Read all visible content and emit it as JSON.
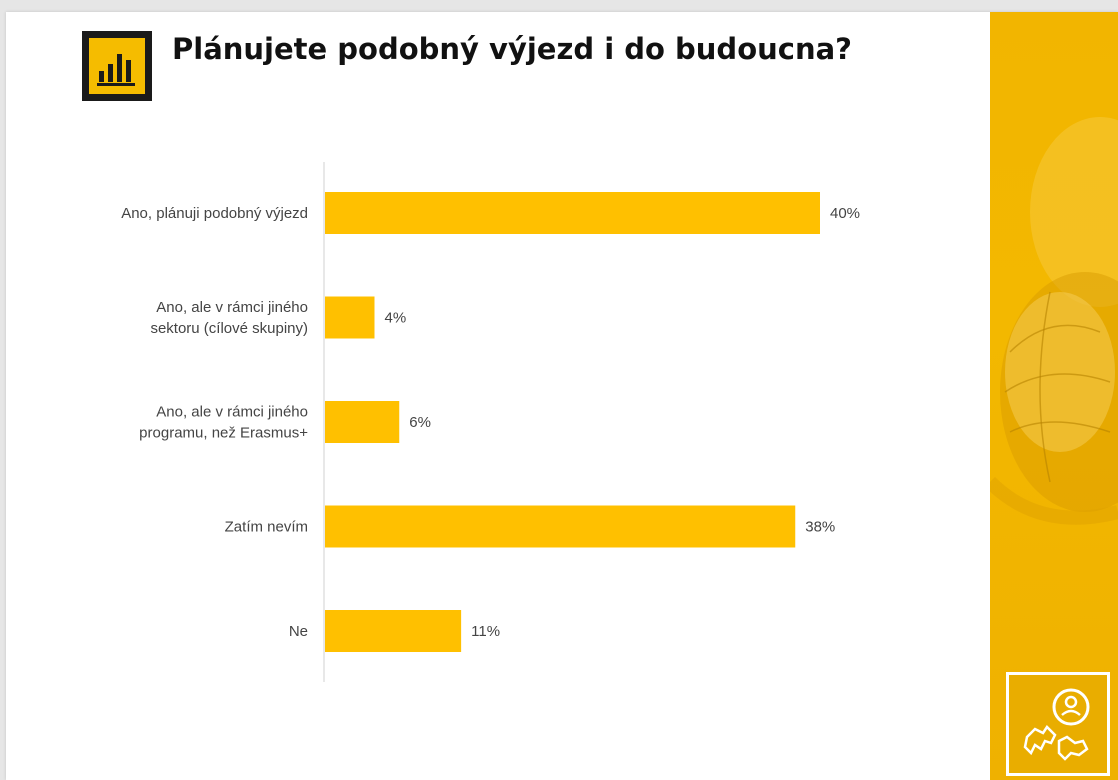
{
  "slide": {
    "title": "Plánujete podobný výjezd i do budoucna?"
  },
  "icons": {
    "title_icon": "bar-chart-icon",
    "brand_icon": "traveler-globe-icon"
  },
  "colors": {
    "bar": "#ffc000",
    "accent_panel": "#f2b500",
    "icon_bg": "#1a1a1a"
  },
  "chart_data": {
    "type": "bar",
    "orientation": "horizontal",
    "categories": [
      [
        "Ano, plánuji podobný výjezd"
      ],
      [
        "Ano, ale v rámci jiného",
        "sektoru (cílové skupiny)"
      ],
      [
        "Ano, ale v rámci jiného",
        "programu, než Erasmus+"
      ],
      [
        "Zatím nevím"
      ],
      [
        "Ne"
      ]
    ],
    "values": [
      40,
      4,
      6,
      38,
      11
    ],
    "value_labels": [
      "40%",
      "4%",
      "6%",
      "38%",
      "11%"
    ],
    "unit": "%",
    "xlim": [
      0,
      40
    ],
    "grid": false,
    "legend": "none"
  }
}
